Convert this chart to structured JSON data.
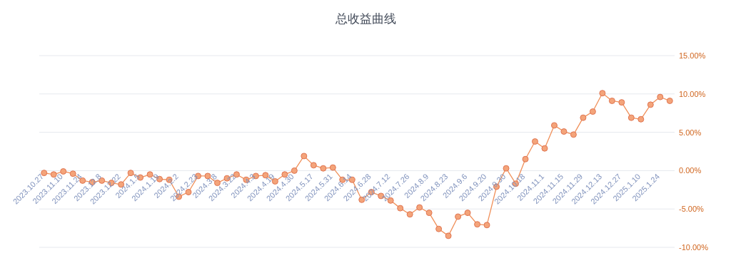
{
  "chart_data": {
    "type": "line",
    "title": "总收益曲线",
    "categories": [
      "2023.10.27",
      null,
      "2023.11.10",
      null,
      "2023.11.24",
      null,
      "2023.12.8",
      null,
      "2023.12.22",
      null,
      "2024.1.5",
      null,
      "2024.1.19",
      null,
      "2024.2.2",
      null,
      "2024.2.23",
      null,
      "2024.3.8",
      null,
      "2024.3.22",
      null,
      "2024.4.3",
      null,
      "2024.4.19",
      null,
      "2024.4.30",
      null,
      "2024.5.17",
      null,
      "2024.5.31",
      null,
      "2024.6.14",
      null,
      "2024.6.28",
      null,
      "2024.7.12",
      null,
      "2024.7.26",
      null,
      "2024.8.9",
      null,
      "2024.8.23",
      null,
      "2024.9.6",
      null,
      "2024.9.20",
      null,
      "2024.9.30",
      null,
      "2024.10.18",
      null,
      "2024.11.1",
      null,
      "2024.11.15",
      null,
      "2024.11.29",
      null,
      "2024.12.13",
      null,
      "2024.12.27",
      null,
      "2025.1.10",
      null,
      "2025.1.24",
      null
    ],
    "series": [
      {
        "color": "#f0905a",
        "values": [
          -0.3,
          -0.5,
          -0.1,
          -0.4,
          -1.3,
          -1.5,
          -1.3,
          -1.6,
          -1.8,
          -0.3,
          -0.9,
          -0.5,
          -1.1,
          -1.2,
          -3.4,
          -2.8,
          -0.7,
          -0.7,
          -1.6,
          -1.0,
          -0.5,
          -1.2,
          -0.7,
          -0.6,
          -1.4,
          -0.5,
          0.0,
          1.9,
          0.7,
          0.3,
          0.4,
          -1.2,
          -1.2,
          -3.8,
          -2.8,
          -3.3,
          -3.9,
          -4.9,
          -5.7,
          -4.8,
          -5.5,
          -7.6,
          -8.5,
          -6.0,
          -5.5,
          -7.0,
          -7.1,
          -2.1,
          0.3,
          -1.7,
          1.5,
          3.8,
          2.9,
          5.9,
          5.1,
          4.7,
          6.9,
          7.7,
          10.1,
          9.1,
          8.9,
          6.9,
          6.7,
          8.6,
          9.6,
          9.1
        ]
      }
    ],
    "ylim": [
      -10,
      15
    ],
    "yticks": [
      {
        "value": -10,
        "label": "-10.00%"
      },
      {
        "value": -5,
        "label": "-5.00%"
      },
      {
        "value": 0,
        "label": "0.00%"
      },
      {
        "value": 5,
        "label": "5.00%"
      },
      {
        "value": 10,
        "label": "10.00%"
      },
      {
        "value": 15,
        "label": "15.00%"
      }
    ],
    "grid": "y",
    "marker": "circle",
    "line_style": "solid"
  }
}
